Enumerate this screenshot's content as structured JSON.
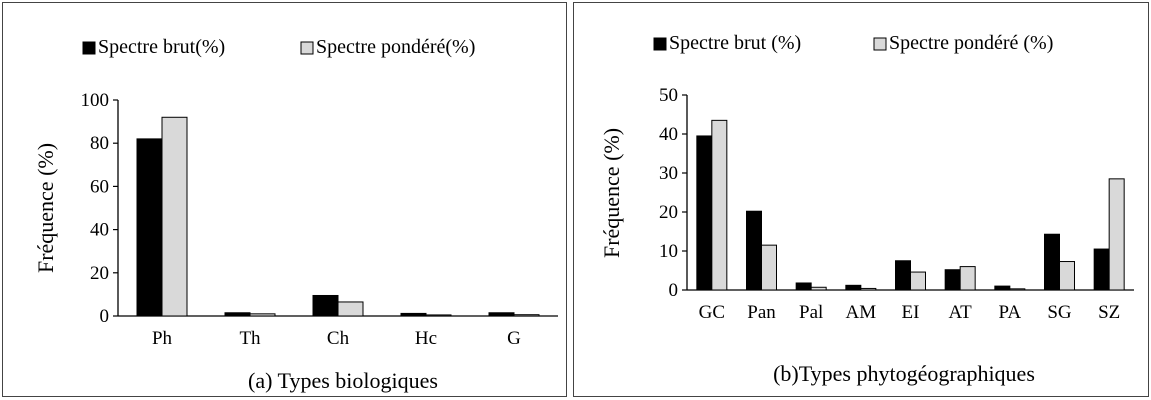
{
  "chart_data": [
    {
      "type": "bar",
      "xlabel": "(a) Types biologiques",
      "ylabel": "Fréquence (%)",
      "ylim": [
        0,
        100
      ],
      "yticks": [
        0,
        20,
        40,
        60,
        80,
        100
      ],
      "categories": [
        "Ph",
        "Th",
        "Ch",
        "Hc",
        "G"
      ],
      "series": [
        {
          "name": "Spectre brut(%)",
          "values": [
            82,
            1.5,
            9.5,
            1.2,
            1.5
          ],
          "color": "#000000"
        },
        {
          "name": "Spectre pondéré(%)",
          "values": [
            92,
            1,
            6.5,
            0.5,
            0.6
          ],
          "color": "#d9d9d9"
        }
      ],
      "legend": "top",
      "grid": false
    },
    {
      "type": "bar",
      "xlabel": "(b)Types phytogéographiques",
      "ylabel": "Fréquence (%)",
      "ylim": [
        0,
        50
      ],
      "yticks": [
        0,
        10,
        20,
        30,
        40,
        50
      ],
      "categories": [
        "GC",
        "Pan",
        "Pal",
        "AM",
        "EI",
        "AT",
        "PA",
        "SG",
        "SZ"
      ],
      "series": [
        {
          "name": "Spectre brut (%)",
          "values": [
            39.5,
            20.2,
            1.8,
            1.2,
            7.5,
            5.2,
            1,
            14.3,
            10.5
          ],
          "color": "#000000"
        },
        {
          "name": "Spectre pondéré (%)",
          "values": [
            43.5,
            11.5,
            0.7,
            0.4,
            4.6,
            6,
            0.3,
            7.3,
            28.5
          ],
          "color": "#d9d9d9"
        }
      ],
      "legend": "top",
      "grid": false
    }
  ]
}
